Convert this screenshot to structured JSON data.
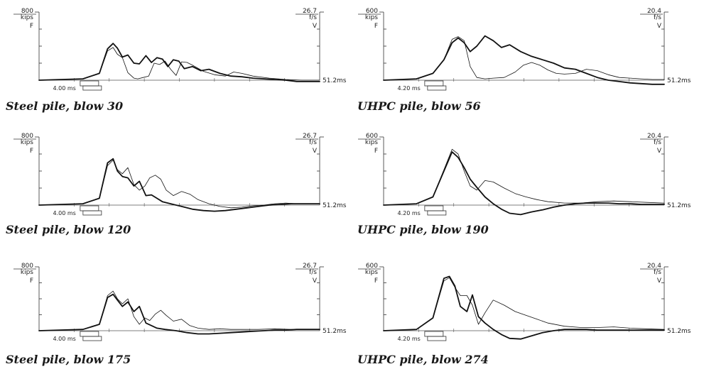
{
  "chart_data": [
    {
      "type": "line",
      "title": "Steel pile, blow 30",
      "force_label": "F",
      "velocity_label": "V",
      "force_max": "800",
      "force_unit": "kips",
      "velocity_max": "26.7",
      "velocity_unit": "f/s",
      "time_marker": "4.00 ms",
      "time_end": "51.2ms",
      "xlim": [
        0,
        51.2
      ],
      "series": [
        {
          "x": [
            0,
            8,
            11,
            12.5,
            13.5,
            14.3,
            15.2,
            16.2,
            17.3,
            18.3,
            19.5,
            20.5,
            21.5,
            22.5,
            23.5,
            24.5,
            25.5,
            26.5,
            28,
            29.5,
            31,
            33,
            35,
            37,
            39,
            41,
            43,
            45,
            47,
            49,
            51.2
          ],
          "y": [
            0,
            0.02,
            0.1,
            0.46,
            0.54,
            0.47,
            0.34,
            0.37,
            0.25,
            0.24,
            0.36,
            0.26,
            0.33,
            0.31,
            0.2,
            0.3,
            0.28,
            0.17,
            0.2,
            0.14,
            0.16,
            0.1,
            0.06,
            0.05,
            0.03,
            0.02,
            0.01,
            0,
            -0.02,
            -0.02,
            -0.02
          ]
        },
        {
          "x": [
            0,
            8,
            11,
            12.5,
            13.5,
            14.3,
            15.2,
            16.2,
            17.3,
            18,
            19,
            20,
            21,
            22,
            23,
            24,
            25,
            26,
            27,
            28,
            30,
            32,
            34,
            35.5,
            37,
            39,
            42,
            45,
            48,
            51.2
          ],
          "y": [
            0,
            0.02,
            0.1,
            0.43,
            0.48,
            0.38,
            0.33,
            0.11,
            0.03,
            0.02,
            0.04,
            0.06,
            0.25,
            0.23,
            0.28,
            0.16,
            0.07,
            0.27,
            0.26,
            0.22,
            0.13,
            0.08,
            0.06,
            0.12,
            0.1,
            0.06,
            0.03,
            0.01,
            0,
            0
          ]
        }
      ]
    },
    {
      "type": "line",
      "title": "UHPC pile, blow 56",
      "force_label": "F",
      "velocity_label": "V",
      "force_max": "600",
      "force_unit": "kips",
      "velocity_max": "20.4",
      "velocity_unit": "f/s",
      "time_marker": "4.20 ms",
      "time_end": "51.2ms",
      "xlim": [
        0,
        51.2
      ],
      "series": [
        {
          "x": [
            0,
            6,
            9,
            11,
            12.5,
            13.6,
            14.7,
            15.8,
            17,
            18.5,
            20,
            21.5,
            23,
            25,
            27,
            29,
            31,
            33,
            35,
            37,
            39,
            41,
            43,
            45,
            47,
            49,
            51.2
          ],
          "y": [
            0,
            0.02,
            0.1,
            0.3,
            0.55,
            0.62,
            0.55,
            0.42,
            0.5,
            0.65,
            0.58,
            0.48,
            0.52,
            0.42,
            0.35,
            0.3,
            0.25,
            0.18,
            0.16,
            0.1,
            0.04,
            0,
            -0.02,
            -0.04,
            -0.05,
            -0.06,
            -0.06
          ]
        },
        {
          "x": [
            0,
            6,
            9,
            11,
            12.5,
            13.6,
            14.7,
            15.8,
            17,
            18.5,
            20,
            22,
            24,
            25.5,
            27,
            28.5,
            30,
            31.5,
            33,
            35,
            37,
            39,
            41,
            43,
            45,
            47,
            49,
            51.2
          ],
          "y": [
            0,
            0.02,
            0.1,
            0.3,
            0.6,
            0.64,
            0.58,
            0.2,
            0.04,
            0.02,
            0.03,
            0.04,
            0.12,
            0.22,
            0.26,
            0.22,
            0.15,
            0.1,
            0.09,
            0.1,
            0.16,
            0.14,
            0.08,
            0.04,
            0.03,
            0.02,
            0.01,
            0.01
          ]
        }
      ]
    },
    {
      "type": "line",
      "title": "Steel pile, blow 120",
      "force_label": "F",
      "velocity_label": "V",
      "force_max": "800",
      "force_unit": "kips",
      "velocity_max": "26.7",
      "velocity_unit": "f/s",
      "time_marker": "4.00 ms",
      "time_end": "51.2ms",
      "xlim": [
        0,
        51.2
      ],
      "series": [
        {
          "x": [
            0,
            8,
            11,
            12.5,
            13.5,
            14.3,
            15.2,
            16.2,
            17.3,
            18.3,
            19.5,
            20.5,
            21.5,
            22.5,
            24,
            26,
            28,
            30,
            32,
            34,
            36,
            38,
            40,
            42,
            44,
            46,
            48,
            51.2
          ],
          "y": [
            0,
            0.02,
            0.1,
            0.62,
            0.68,
            0.5,
            0.42,
            0.4,
            0.28,
            0.35,
            0.14,
            0.15,
            0.1,
            0.05,
            0.02,
            -0.02,
            -0.06,
            -0.08,
            -0.09,
            -0.08,
            -0.06,
            -0.04,
            -0.02,
            0,
            0.01,
            0.02,
            0.02,
            0.02
          ]
        },
        {
          "x": [
            0,
            8,
            11,
            12.5,
            13.5,
            14.3,
            15.2,
            16.2,
            17.3,
            18.3,
            19.3,
            20.2,
            21.2,
            22.2,
            23.2,
            24.5,
            26,
            27.5,
            29,
            31,
            33,
            35,
            37,
            39,
            41,
            43,
            45,
            47,
            49,
            51.2
          ],
          "y": [
            0,
            0.02,
            0.1,
            0.58,
            0.66,
            0.52,
            0.46,
            0.55,
            0.3,
            0.22,
            0.28,
            0.4,
            0.44,
            0.38,
            0.22,
            0.14,
            0.2,
            0.16,
            0.08,
            0.02,
            -0.02,
            -0.04,
            -0.03,
            -0.01,
            0,
            0.02,
            0.03,
            0.02,
            0.02,
            0.02
          ]
        }
      ]
    },
    {
      "type": "line",
      "title": "UHPC pile, blow 190",
      "force_label": "F",
      "velocity_label": "V",
      "force_max": "600",
      "force_unit": "kips",
      "velocity_max": "20.4",
      "velocity_unit": "f/s",
      "time_marker": "4.20 ms",
      "time_end": "51.2ms",
      "xlim": [
        0,
        51.2
      ],
      "series": [
        {
          "x": [
            0,
            6,
            9,
            11,
            12.5,
            13.6,
            14.7,
            15.8,
            17,
            18.5,
            20,
            21.5,
            23,
            25,
            27,
            29,
            31,
            33,
            35,
            37,
            39,
            41,
            43,
            45,
            47,
            49,
            51.2
          ],
          "y": [
            0,
            0.02,
            0.12,
            0.5,
            0.78,
            0.7,
            0.55,
            0.38,
            0.26,
            0.12,
            0.02,
            -0.06,
            -0.12,
            -0.14,
            -0.1,
            -0.07,
            -0.03,
            0,
            0.02,
            0.03,
            0.03,
            0.03,
            0.02,
            0.02,
            0.01,
            0.01,
            0.01
          ]
        },
        {
          "x": [
            0,
            6,
            9,
            11,
            12.5,
            13.6,
            14.7,
            15.8,
            17,
            18.5,
            20,
            22,
            24,
            26,
            28,
            30,
            33,
            36,
            39,
            42,
            45,
            48,
            51.2
          ],
          "y": [
            0,
            0.02,
            0.12,
            0.52,
            0.82,
            0.75,
            0.5,
            0.28,
            0.22,
            0.36,
            0.34,
            0.25,
            0.17,
            0.12,
            0.08,
            0.05,
            0.03,
            0.03,
            0.05,
            0.06,
            0.05,
            0.04,
            0.03
          ]
        }
      ]
    },
    {
      "type": "line",
      "title": "Steel pile, blow 175",
      "force_label": "F",
      "velocity_label": "V",
      "force_max": "800",
      "force_unit": "kips",
      "velocity_max": "26.7",
      "velocity_unit": "f/s",
      "time_marker": "4.00 ms",
      "time_end": "51.2ms",
      "xlim": [
        0,
        51.2
      ],
      "series": [
        {
          "x": [
            0,
            8,
            11,
            12.5,
            13.5,
            14.3,
            15.2,
            16.2,
            17.3,
            18.3,
            19.5,
            20.5,
            21.5,
            23,
            25,
            27,
            29,
            31,
            33,
            35,
            37,
            39,
            41,
            43,
            45,
            47,
            49,
            51.2
          ],
          "y": [
            0,
            0.02,
            0.1,
            0.52,
            0.57,
            0.48,
            0.38,
            0.45,
            0.3,
            0.38,
            0.12,
            0.08,
            0.04,
            0.02,
            0,
            -0.03,
            -0.05,
            -0.05,
            -0.04,
            -0.03,
            -0.02,
            -0.01,
            0,
            0.01,
            0.01,
            0.02,
            0.02,
            0.02
          ]
        },
        {
          "x": [
            0,
            8,
            11,
            12.5,
            13.5,
            14.3,
            15.2,
            16.2,
            17.3,
            18.3,
            19.3,
            20.2,
            21.2,
            22.2,
            23.2,
            24.5,
            26,
            27.5,
            29,
            31,
            33,
            35,
            37,
            40,
            43,
            46,
            49,
            51.2
          ],
          "y": [
            0,
            0.02,
            0.1,
            0.55,
            0.62,
            0.5,
            0.42,
            0.5,
            0.22,
            0.1,
            0.2,
            0.16,
            0.26,
            0.32,
            0.24,
            0.15,
            0.18,
            0.08,
            0.04,
            0.02,
            0.03,
            0.02,
            0.02,
            0.02,
            0.03,
            0.02,
            0.02,
            0.02
          ]
        }
      ]
    },
    {
      "type": "line",
      "title": "UHPC pile, blow 274",
      "force_label": "F",
      "velocity_label": "V",
      "force_max": "600",
      "force_unit": "kips",
      "velocity_max": "20.4",
      "velocity_unit": "f/s",
      "time_marker": "4.20 ms",
      "time_end": "51.2ms",
      "xlim": [
        0,
        51.2
      ],
      "series": [
        {
          "x": [
            0,
            6,
            9,
            11,
            12,
            13,
            14,
            15.2,
            16.2,
            17.3,
            18.5,
            20,
            21.5,
            23,
            25,
            27,
            29,
            31,
            33,
            35,
            37,
            39,
            41,
            43,
            45,
            47,
            49,
            51.2
          ],
          "y": [
            0,
            0.02,
            0.2,
            0.82,
            0.85,
            0.7,
            0.38,
            0.3,
            0.56,
            0.22,
            0.12,
            0.02,
            -0.06,
            -0.12,
            -0.13,
            -0.08,
            -0.03,
            0,
            0.02,
            0.02,
            0.02,
            0.01,
            0.01,
            0.01,
            0.01,
            0.01,
            0.01,
            0.01
          ]
        },
        {
          "x": [
            0,
            6,
            9,
            11,
            12,
            13,
            14,
            15.2,
            16.2,
            17.3,
            18.5,
            20,
            22,
            24,
            26,
            28,
            30,
            33,
            36,
            39,
            42,
            45,
            48,
            51.2
          ],
          "y": [
            0,
            0.02,
            0.2,
            0.78,
            0.83,
            0.68,
            0.55,
            0.55,
            0.4,
            0.1,
            0.28,
            0.48,
            0.4,
            0.3,
            0.24,
            0.18,
            0.12,
            0.07,
            0.05,
            0.05,
            0.06,
            0.04,
            0.03,
            0.02
          ]
        }
      ]
    }
  ]
}
